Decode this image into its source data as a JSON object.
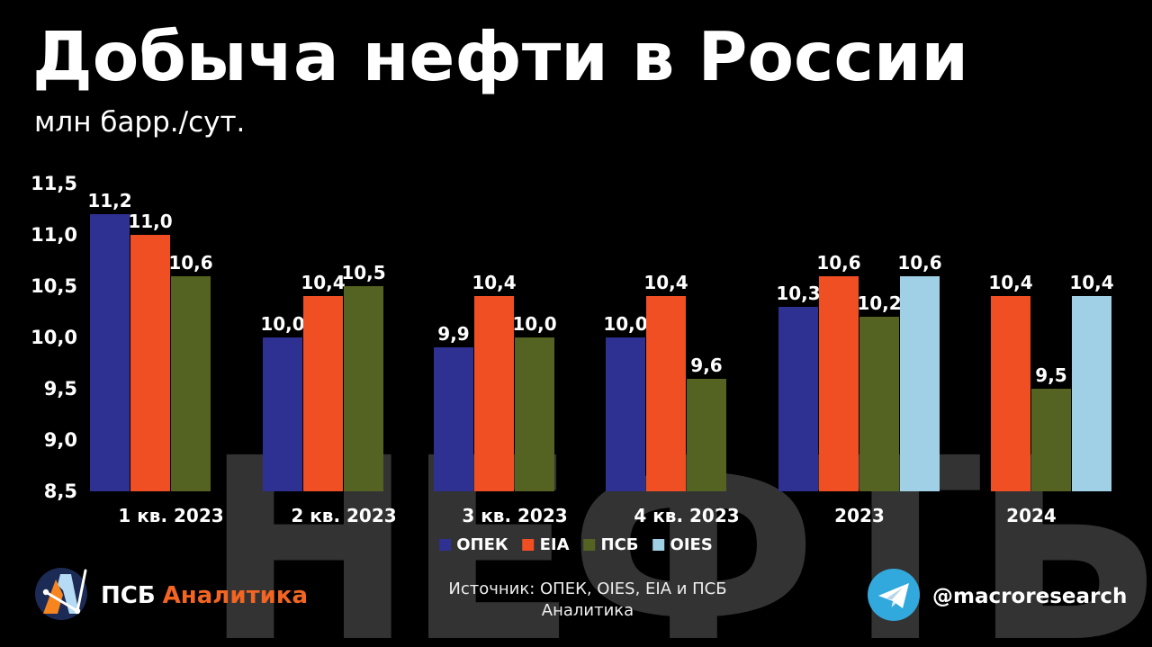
{
  "header": {
    "title": "Добыча нефти в России",
    "subtitle": "млн барр./сут."
  },
  "watermark": {
    "text": "НЕФТЬ"
  },
  "chart_data": {
    "type": "bar",
    "title": "Добыча нефти в России",
    "ylabel": "млн барр./сут.",
    "xlabel": "",
    "categories": [
      "1 кв. 2023",
      "2 кв. 2023",
      "3 кв. 2023",
      "4 кв. 2023",
      "2023",
      "2024"
    ],
    "series": [
      {
        "name": "ОПЕК",
        "color": "#2e3192",
        "values": [
          11.2,
          10.0,
          9.9,
          10.0,
          10.3,
          null
        ]
      },
      {
        "name": "EIA",
        "color": "#f04e23",
        "values": [
          11.0,
          10.4,
          10.4,
          10.4,
          10.6,
          10.4
        ]
      },
      {
        "name": "ПСБ",
        "color": "#546321",
        "values": [
          10.6,
          10.5,
          10.0,
          9.6,
          10.2,
          9.5
        ]
      },
      {
        "name": "OIES",
        "color": "#9fd0e6",
        "values": [
          null,
          null,
          null,
          null,
          10.6,
          10.4
        ]
      }
    ],
    "ylim": [
      8.5,
      11.5
    ],
    "ytick_step": 0.5,
    "yticks": [
      8.5,
      9.0,
      9.5,
      10.0,
      10.5,
      11.0,
      11.5
    ],
    "grid": false,
    "legend_position": "bottom",
    "value_labels": true,
    "decimal_separator": ","
  },
  "footer": {
    "source_line1": "Источник: ОПЕК, OIES, EIA и ПСБ",
    "source_line2": "Аналитика",
    "brand_name": "ПСБ",
    "brand_suffix": "Аналитика",
    "telegram_handle": "@macroresearch"
  },
  "colors": {
    "background": "#000000",
    "text": "#ffffff",
    "watermark_gray": "#333333",
    "brand_orange": "#f26522",
    "telegram_blue": "#32a9dd",
    "logo_navy": "#1c2b56",
    "logo_light_blue": "#b5dcf4",
    "logo_orange": "#f6851f"
  },
  "icons": {
    "telegram": "telegram-plane-icon",
    "brand_logo": "psb-analytics-logo"
  }
}
